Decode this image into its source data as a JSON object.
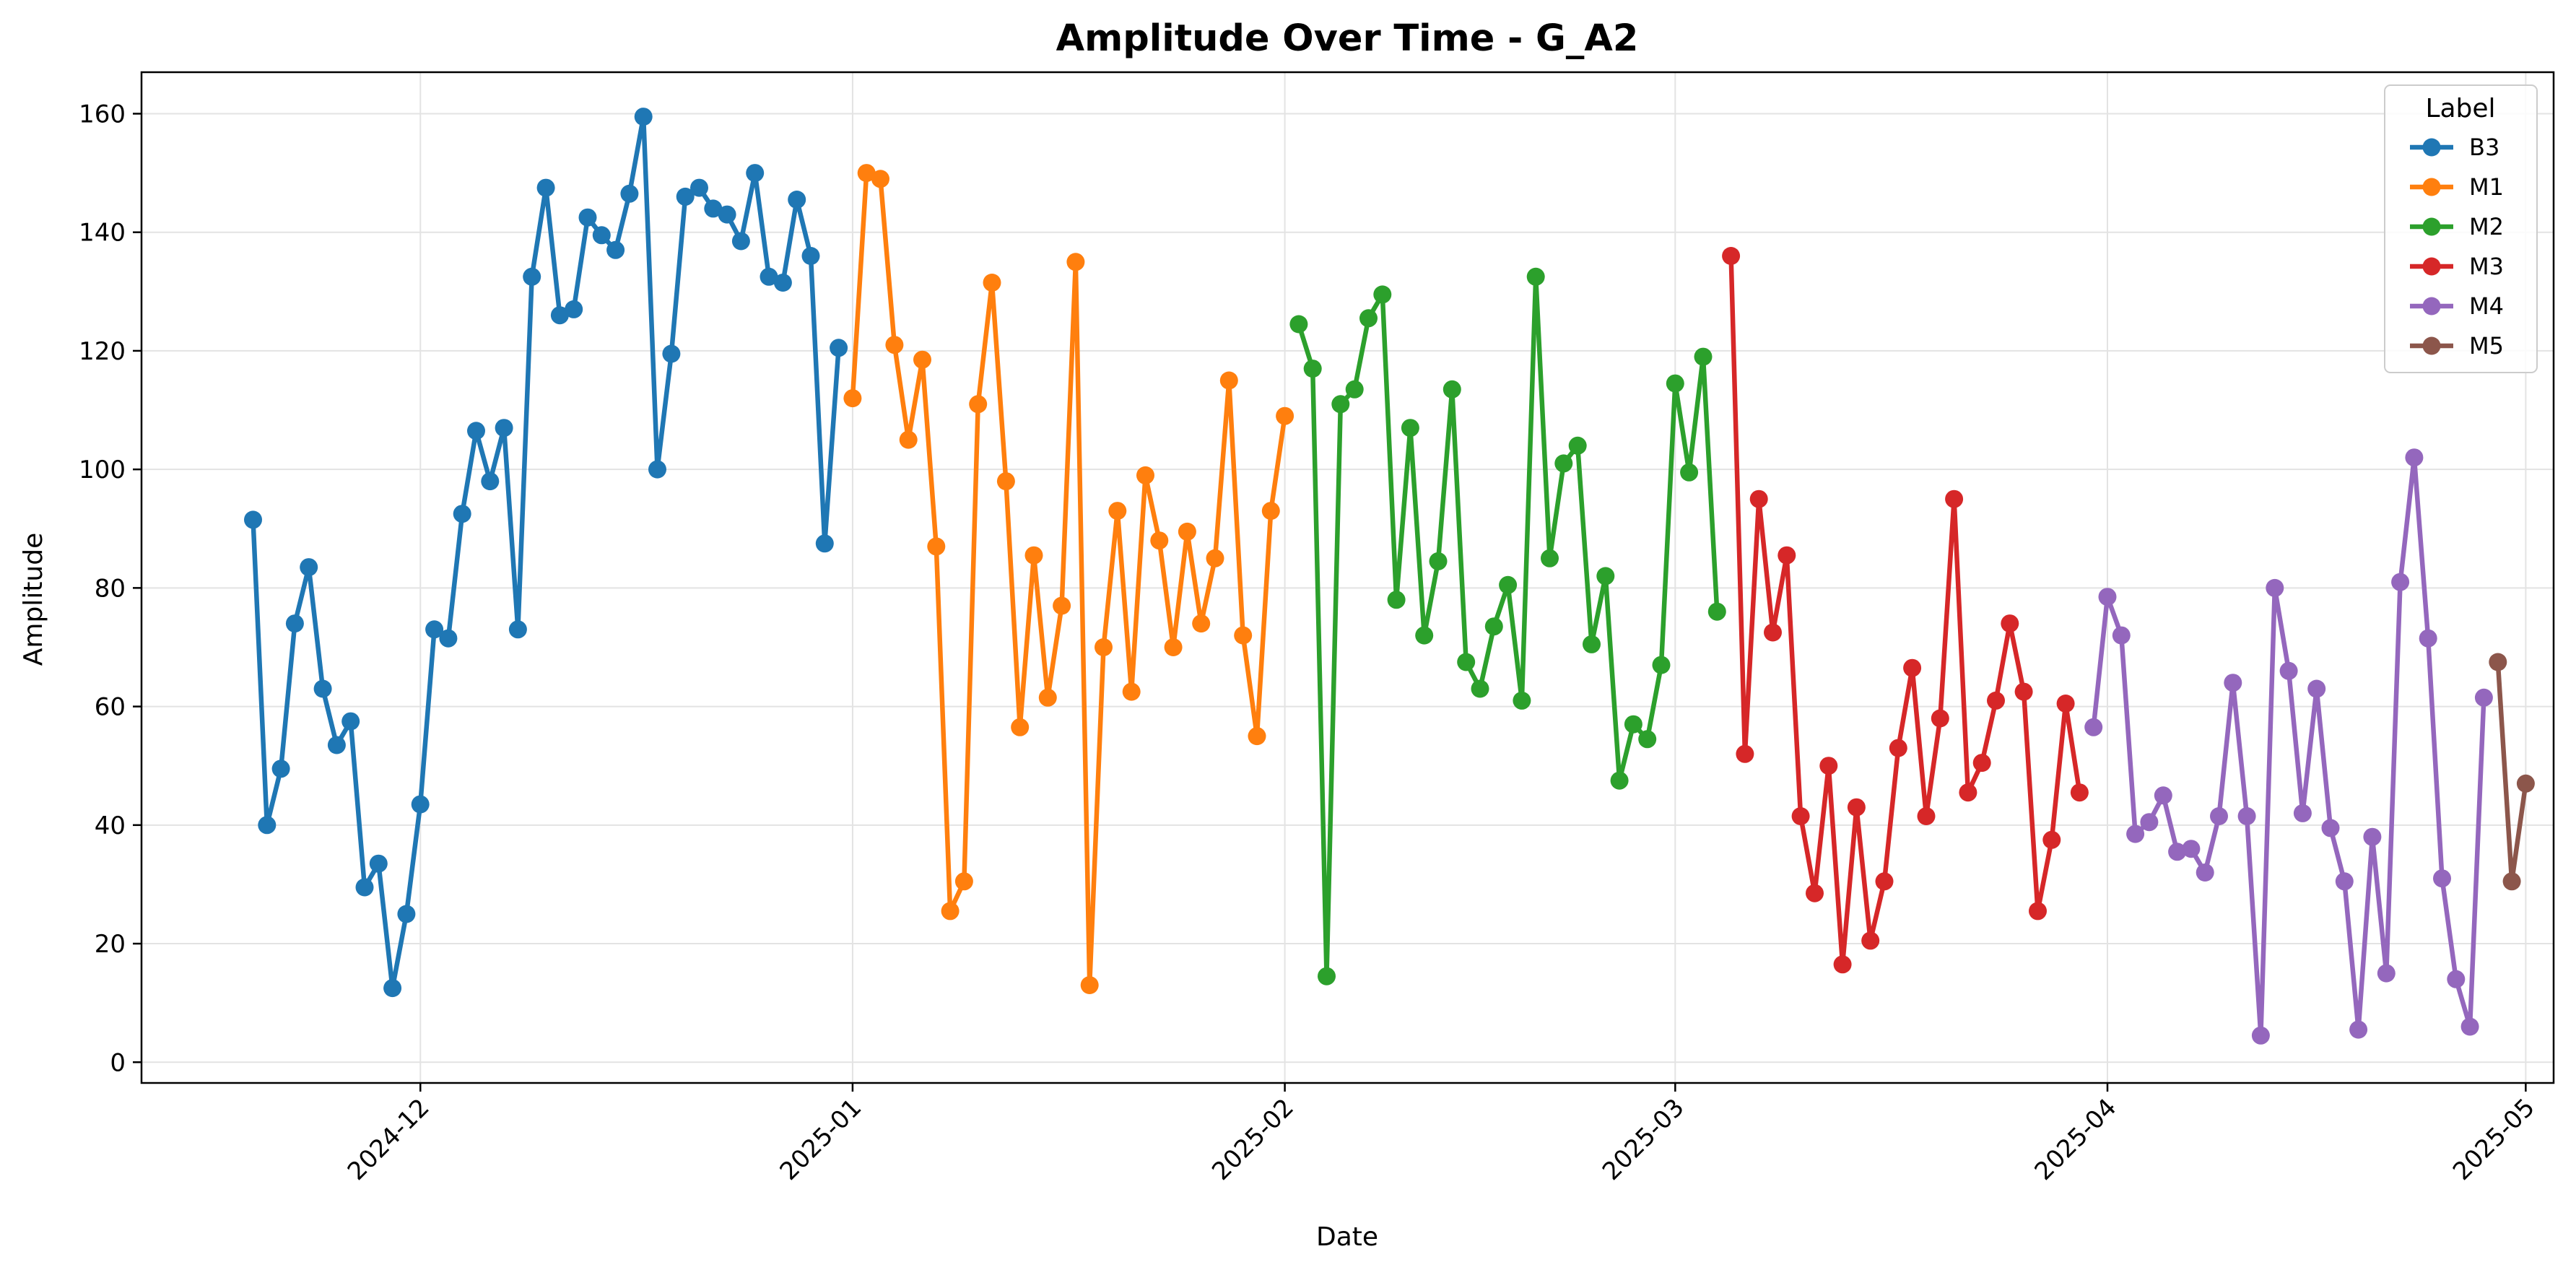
{
  "chart_data": {
    "type": "line",
    "title": "Amplitude Over Time - G_A2",
    "xlabel": "Date",
    "ylabel": "Amplitude",
    "x_ticks": [
      "2024-12",
      "2025-01",
      "2025-02",
      "2025-03",
      "2025-04",
      "2025-05"
    ],
    "y_ticks": [
      0,
      20,
      40,
      60,
      80,
      100,
      120,
      140,
      160
    ],
    "xlim": [
      "2024-11-11",
      "2025-05-03"
    ],
    "ylim": [
      -3.5,
      167
    ],
    "grid": true,
    "legend": {
      "title": "Label",
      "placement": "top-right"
    },
    "series": [
      {
        "name": "B3",
        "color": "#1f77b4",
        "points": [
          [
            "2024-11-19",
            91.5
          ],
          [
            "2024-11-20",
            40
          ],
          [
            "2024-11-21",
            49.5
          ],
          [
            "2024-11-22",
            74
          ],
          [
            "2024-11-23",
            83.5
          ],
          [
            "2024-11-24",
            63
          ],
          [
            "2024-11-25",
            53.5
          ],
          [
            "2024-11-26",
            57.5
          ],
          [
            "2024-11-27",
            29.5
          ],
          [
            "2024-11-28",
            33.5
          ],
          [
            "2024-11-29",
            12.5
          ],
          [
            "2024-11-30",
            25
          ],
          [
            "2024-12-01",
            43.5
          ],
          [
            "2024-12-02",
            73
          ],
          [
            "2024-12-03",
            71.5
          ],
          [
            "2024-12-04",
            92.5
          ],
          [
            "2024-12-05",
            106.5
          ],
          [
            "2024-12-06",
            98
          ],
          [
            "2024-12-07",
            107
          ],
          [
            "2024-12-08",
            73
          ],
          [
            "2024-12-09",
            132.5
          ],
          [
            "2024-12-10",
            147.5
          ],
          [
            "2024-12-11",
            126
          ],
          [
            "2024-12-12",
            127
          ],
          [
            "2024-12-13",
            142.5
          ],
          [
            "2024-12-14",
            139.5
          ],
          [
            "2024-12-15",
            137
          ],
          [
            "2024-12-16",
            146.5
          ],
          [
            "2024-12-17",
            159.5
          ],
          [
            "2024-12-18",
            100
          ],
          [
            "2024-12-19",
            119.5
          ],
          [
            "2024-12-20",
            146
          ],
          [
            "2024-12-21",
            147.5
          ],
          [
            "2024-12-22",
            144
          ],
          [
            "2024-12-23",
            143
          ],
          [
            "2024-12-24",
            138.5
          ],
          [
            "2024-12-25",
            150
          ],
          [
            "2024-12-26",
            132.5
          ],
          [
            "2024-12-27",
            131.5
          ],
          [
            "2024-12-28",
            145.5
          ],
          [
            "2024-12-29",
            136
          ],
          [
            "2024-12-30",
            87.5
          ],
          [
            "2024-12-31",
            120.5
          ]
        ]
      },
      {
        "name": "M1",
        "color": "#ff7f0e",
        "points": [
          [
            "2025-01-01",
            112
          ],
          [
            "2025-01-02",
            150
          ],
          [
            "2025-01-03",
            149
          ],
          [
            "2025-01-04",
            121
          ],
          [
            "2025-01-05",
            105
          ],
          [
            "2025-01-06",
            118.5
          ],
          [
            "2025-01-07",
            87
          ],
          [
            "2025-01-08",
            25.5
          ],
          [
            "2025-01-09",
            30.5
          ],
          [
            "2025-01-10",
            111
          ],
          [
            "2025-01-11",
            131.5
          ],
          [
            "2025-01-12",
            98
          ],
          [
            "2025-01-13",
            56.5
          ],
          [
            "2025-01-14",
            85.5
          ],
          [
            "2025-01-15",
            61.5
          ],
          [
            "2025-01-16",
            77
          ],
          [
            "2025-01-17",
            135
          ],
          [
            "2025-01-18",
            13
          ],
          [
            "2025-01-19",
            70
          ],
          [
            "2025-01-20",
            93
          ],
          [
            "2025-01-21",
            62.5
          ],
          [
            "2025-01-22",
            99
          ],
          [
            "2025-01-23",
            88
          ],
          [
            "2025-01-24",
            70
          ],
          [
            "2025-01-25",
            89.5
          ],
          [
            "2025-01-26",
            74
          ],
          [
            "2025-01-27",
            85
          ],
          [
            "2025-01-28",
            115
          ],
          [
            "2025-01-29",
            72
          ],
          [
            "2025-01-30",
            55
          ],
          [
            "2025-01-31",
            93
          ],
          [
            "2025-02-01",
            109
          ]
        ]
      },
      {
        "name": "M2",
        "color": "#2ca02c",
        "points": [
          [
            "2025-02-02",
            124.5
          ],
          [
            "2025-02-03",
            117
          ],
          [
            "2025-02-04",
            14.5
          ],
          [
            "2025-02-05",
            111
          ],
          [
            "2025-02-06",
            113.5
          ],
          [
            "2025-02-07",
            125.5
          ],
          [
            "2025-02-08",
            129.5
          ],
          [
            "2025-02-09",
            78
          ],
          [
            "2025-02-10",
            107
          ],
          [
            "2025-02-11",
            72
          ],
          [
            "2025-02-12",
            84.5
          ],
          [
            "2025-02-13",
            113.5
          ],
          [
            "2025-02-14",
            67.5
          ],
          [
            "2025-02-15",
            63
          ],
          [
            "2025-02-16",
            73.5
          ],
          [
            "2025-02-17",
            80.5
          ],
          [
            "2025-02-18",
            61
          ],
          [
            "2025-02-19",
            132.5
          ],
          [
            "2025-02-20",
            85
          ],
          [
            "2025-02-21",
            101
          ],
          [
            "2025-02-22",
            104
          ],
          [
            "2025-02-23",
            70.5
          ],
          [
            "2025-02-24",
            82
          ],
          [
            "2025-02-25",
            47.5
          ],
          [
            "2025-02-26",
            57
          ],
          [
            "2025-02-27",
            54.5
          ],
          [
            "2025-02-28",
            67
          ],
          [
            "2025-03-01",
            114.5
          ],
          [
            "2025-03-02",
            99.5
          ],
          [
            "2025-03-03",
            119
          ],
          [
            "2025-03-04",
            76
          ]
        ]
      },
      {
        "name": "M3",
        "color": "#d62728",
        "points": [
          [
            "2025-03-05",
            136
          ],
          [
            "2025-03-06",
            52
          ],
          [
            "2025-03-07",
            95
          ],
          [
            "2025-03-08",
            72.5
          ],
          [
            "2025-03-09",
            85.5
          ],
          [
            "2025-03-10",
            41.5
          ],
          [
            "2025-03-11",
            28.5
          ],
          [
            "2025-03-12",
            50
          ],
          [
            "2025-03-13",
            16.5
          ],
          [
            "2025-03-14",
            43
          ],
          [
            "2025-03-15",
            20.5
          ],
          [
            "2025-03-16",
            30.5
          ],
          [
            "2025-03-17",
            53
          ],
          [
            "2025-03-18",
            66.5
          ],
          [
            "2025-03-19",
            41.5
          ],
          [
            "2025-03-20",
            58
          ],
          [
            "2025-03-21",
            95
          ],
          [
            "2025-03-22",
            45.5
          ],
          [
            "2025-03-23",
            50.5
          ],
          [
            "2025-03-24",
            61
          ],
          [
            "2025-03-25",
            74
          ],
          [
            "2025-03-26",
            62.5
          ],
          [
            "2025-03-27",
            25.5
          ],
          [
            "2025-03-28",
            37.5
          ],
          [
            "2025-03-29",
            60.5
          ],
          [
            "2025-03-30",
            45.5
          ]
        ]
      },
      {
        "name": "M4",
        "color": "#9467bd",
        "points": [
          [
            "2025-03-31",
            56.5
          ],
          [
            "2025-04-01",
            78.5
          ],
          [
            "2025-04-02",
            72
          ],
          [
            "2025-04-03",
            38.5
          ],
          [
            "2025-04-04",
            40.5
          ],
          [
            "2025-04-05",
            45
          ],
          [
            "2025-04-06",
            35.5
          ],
          [
            "2025-04-07",
            36
          ],
          [
            "2025-04-08",
            32
          ],
          [
            "2025-04-09",
            41.5
          ],
          [
            "2025-04-10",
            64
          ],
          [
            "2025-04-11",
            41.5
          ],
          [
            "2025-04-12",
            4.5
          ],
          [
            "2025-04-13",
            80
          ],
          [
            "2025-04-14",
            66
          ],
          [
            "2025-04-15",
            42
          ],
          [
            "2025-04-16",
            63
          ],
          [
            "2025-04-17",
            39.5
          ],
          [
            "2025-04-18",
            30.5
          ],
          [
            "2025-04-19",
            5.5
          ],
          [
            "2025-04-20",
            38
          ],
          [
            "2025-04-21",
            15
          ],
          [
            "2025-04-22",
            81
          ],
          [
            "2025-04-23",
            102
          ],
          [
            "2025-04-24",
            71.5
          ],
          [
            "2025-04-25",
            31
          ],
          [
            "2025-04-26",
            14
          ],
          [
            "2025-04-27",
            6
          ],
          [
            "2025-04-28",
            61.5
          ]
        ]
      },
      {
        "name": "M5",
        "color": "#8c564b",
        "points": [
          [
            "2025-04-29",
            67.5
          ],
          [
            "2025-04-30",
            30.5
          ],
          [
            "2025-05-01",
            47
          ]
        ]
      }
    ]
  }
}
